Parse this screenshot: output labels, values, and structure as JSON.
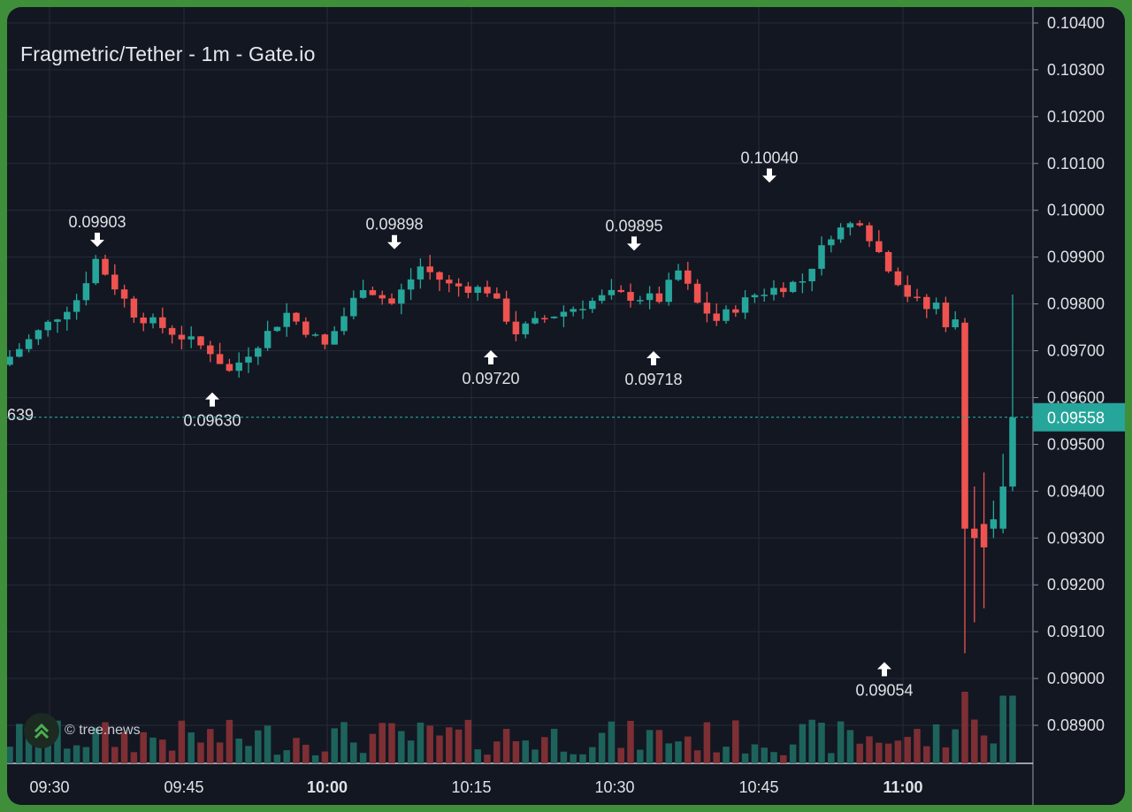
{
  "title": "Fragmetric/Tether - 1m - Gate.io",
  "watermark": "© tree.news",
  "colors": {
    "up": "#26a69a",
    "down": "#ef5350",
    "background": "#131722",
    "grid": "#262b38",
    "text": "#dfe1e6",
    "frame": "#3f8f3a"
  },
  "chart_data": {
    "type": "candlestick",
    "interval": "1m",
    "y_ticks": [
      "0.10400",
      "0.10300",
      "0.10200",
      "0.10100",
      "0.10000",
      "0.09900",
      "0.09800",
      "0.09700",
      "0.09600",
      "0.09500",
      "0.09400",
      "0.09300",
      "0.09200",
      "0.09100",
      "0.09000",
      "0.08900"
    ],
    "ylim": [
      0.0882,
      0.1045
    ],
    "x_ticks": [
      {
        "label": "09:30",
        "bold": false
      },
      {
        "label": "09:45",
        "bold": false
      },
      {
        "label": "10:00",
        "bold": true
      },
      {
        "label": "10:15",
        "bold": false
      },
      {
        "label": "10:30",
        "bold": false
      },
      {
        "label": "10:45",
        "bold": false
      },
      {
        "label": "11:00",
        "bold": true
      }
    ],
    "last_price": "0.09558",
    "left_cut_label": "639",
    "annotations": [
      {
        "label": "0.09903",
        "value": 0.09903,
        "type": "high"
      },
      {
        "label": "0.09630",
        "value": 0.0963,
        "type": "low"
      },
      {
        "label": "0.09898",
        "value": 0.09898,
        "type": "high"
      },
      {
        "label": "0.09720",
        "value": 0.0972,
        "type": "low"
      },
      {
        "label": "0.09895",
        "value": 0.09895,
        "type": "high"
      },
      {
        "label": "0.09718",
        "value": 0.09718,
        "type": "low"
      },
      {
        "label": "0.10040",
        "value": 0.1004,
        "type": "high"
      },
      {
        "label": "0.09054",
        "value": 0.09054,
        "type": "low"
      }
    ]
  }
}
